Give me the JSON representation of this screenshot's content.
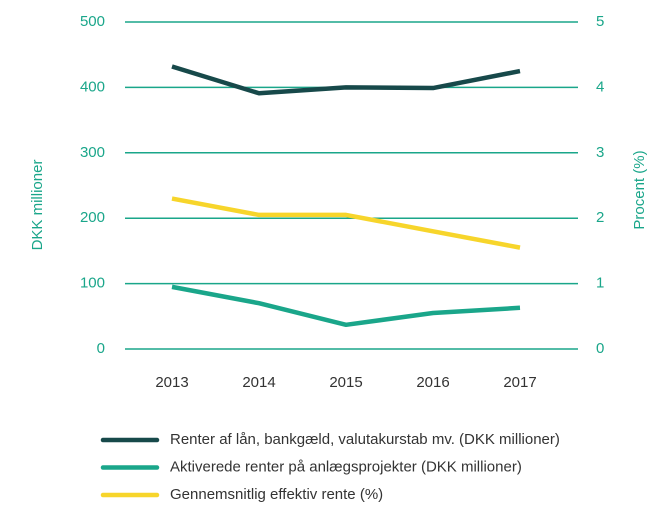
{
  "chart_data": {
    "type": "line",
    "categories": [
      "2013",
      "2014",
      "2015",
      "2016",
      "2017"
    ],
    "ylabel": "DKK millioner",
    "y2label": "Procent (%)",
    "ylim": [
      0,
      500
    ],
    "yticks": [
      0,
      100,
      200,
      300,
      400,
      500
    ],
    "y2lim": [
      0,
      5
    ],
    "y2ticks": [
      0,
      1,
      2,
      3,
      4,
      5
    ],
    "grid": true,
    "legend": "bottom",
    "series": [
      {
        "name": "Renter af lån, bankgæld, valutakurstab mv. (DKK millioner)",
        "color": "#17494a",
        "values": [
          432,
          391,
          400,
          399,
          425
        ]
      },
      {
        "name": "Aktiverede renter på anlægsprojekter (DKK millioner)",
        "color": "#1aa68a",
        "values": [
          95,
          70,
          37,
          55,
          63
        ]
      },
      {
        "name": "Gennemsnitlig effektiv rente (%)",
        "color": "#f7d52b",
        "axis": "y2",
        "values": [
          2.3,
          2.05,
          2.05,
          1.8,
          1.55
        ]
      }
    ]
  }
}
